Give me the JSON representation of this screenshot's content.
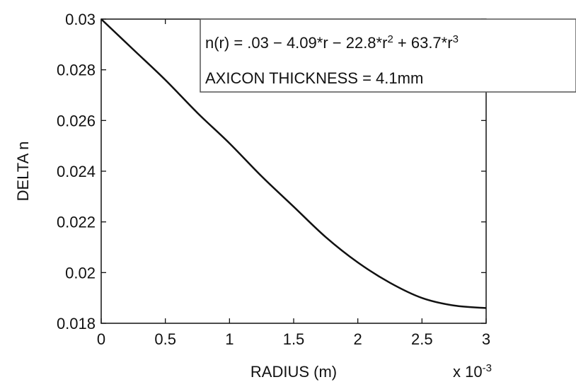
{
  "chart_data": {
    "type": "line",
    "title": "",
    "xlabel": "RADIUS (m)",
    "ylabel": "DELTA n",
    "x_multiplier": "x 10",
    "x_multiplier_exp": "-3",
    "xlim": [
      0,
      3
    ],
    "ylim": [
      0.018,
      0.03
    ],
    "xticks": [
      "0",
      "0.5",
      "1",
      "1.5",
      "2",
      "2.5",
      "3"
    ],
    "yticks": [
      "0.018",
      "0.02",
      "0.022",
      "0.024",
      "0.026",
      "0.028",
      "0.03"
    ],
    "grid": false,
    "legend": {
      "placement": "top-right",
      "formula_base": "n(r) = .03 − 4.09*r − 22.8*r",
      "formula_exp1": "2",
      "formula_mid": " + 63.7*r",
      "formula_exp2": "3",
      "thickness": "AXICON THICKNESS = 4.1mm"
    },
    "series": [
      {
        "x": [
          0,
          0.25,
          0.5,
          0.75,
          1.0,
          1.25,
          1.5,
          1.75,
          2.0,
          2.25,
          2.5,
          2.75,
          3.0
        ],
        "y": [
          0.03,
          0.0288,
          0.0276,
          0.0263,
          0.0251,
          0.0238,
          0.0226,
          0.0214,
          0.0204,
          0.0196,
          0.019,
          0.0187,
          0.0186
        ]
      }
    ],
    "colors": {
      "line": "#111111",
      "axes": "#111111",
      "legend_border": "#555555"
    }
  }
}
